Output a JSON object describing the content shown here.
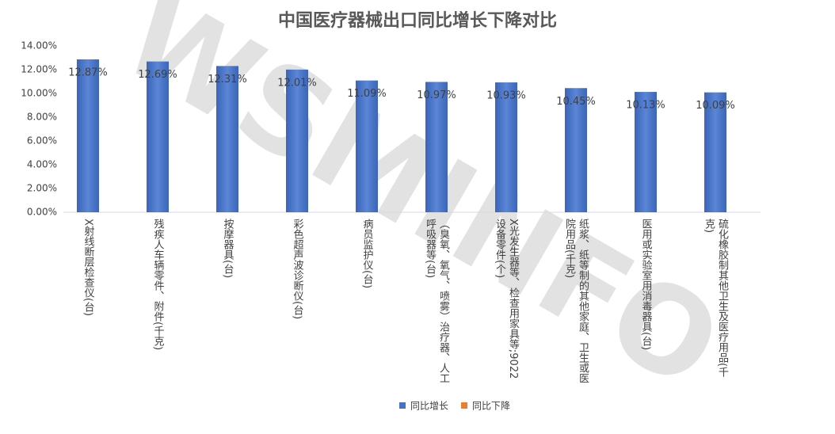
{
  "chart_data": {
    "type": "bar",
    "title": "中国医疗器械出口同比增长下降对比",
    "watermark": "WSMINFO",
    "categories": [
      "X射线断层检查仪(台)",
      "残疾人车辆零件、附件(千克)",
      "按摩器具(台)",
      "彩色超声波诊断仪(台)",
      "病员监护仪(台)",
      "（臭氧、氧气、喷雾）治疗器、人工呼吸器等(台)",
      "X光发生器等、检查用家具等;9022设备零件(个)",
      "纸浆、纸等制的其他家庭、卫生或医院用品(千克)",
      "医用或实验室用消毒器具(台)",
      "硫化橡胶制其他卫生及医疗用品(千克)"
    ],
    "series": [
      {
        "name": "同比增长",
        "color": "#4472c4",
        "values": [
          12.87,
          12.69,
          12.31,
          12.01,
          11.09,
          10.97,
          10.93,
          10.45,
          10.13,
          10.09
        ],
        "value_labels": [
          "12.87%",
          "12.69%",
          "12.31%",
          "12.01%",
          "11.09%",
          "10.97%",
          "10.93%",
          "10.45%",
          "10.13%",
          "10.09%"
        ]
      },
      {
        "name": "同比下降",
        "color": "#ed7d31",
        "values": [
          null,
          null,
          null,
          null,
          null,
          null,
          null,
          null,
          null,
          null
        ]
      }
    ],
    "ylim": [
      0,
      14
    ],
    "yticks": [
      {
        "value": 0,
        "label": "0.00%"
      },
      {
        "value": 2,
        "label": "2.00%"
      },
      {
        "value": 4,
        "label": "4.00%"
      },
      {
        "value": 6,
        "label": "6.00%"
      },
      {
        "value": 8,
        "label": "8.00%"
      },
      {
        "value": 10,
        "label": "10.00%"
      },
      {
        "value": 12,
        "label": "12.00%"
      },
      {
        "value": 14,
        "label": "14.00%"
      }
    ],
    "legend": "bottom"
  }
}
